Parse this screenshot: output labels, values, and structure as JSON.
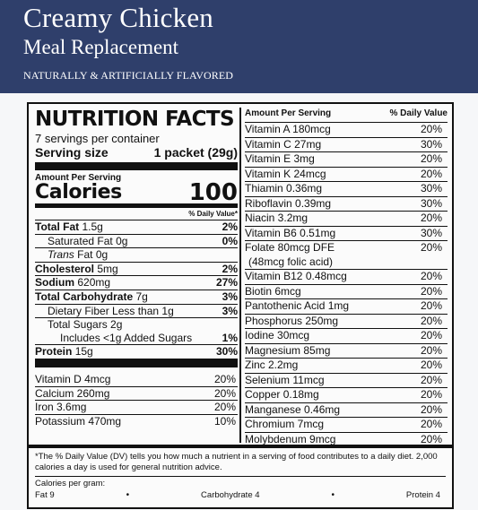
{
  "banner": {
    "title": "Creamy Chicken",
    "subtitle": "Meal Replacement",
    "flavor": "NATURALLY & ARTIFICIALLY FLAVORED",
    "color": "#2f3f6b"
  },
  "facts": {
    "title": "NUTRITION FACTS",
    "servings": "7 servings per container",
    "serving_size_label": "Serving size",
    "serving_size_value": "1 packet (29g)",
    "amount_per_serving": "Amount Per Serving",
    "calories_label": "Calories",
    "calories_value": "100",
    "dv_header": "% Daily Value*",
    "nutrients": [
      {
        "label": "Total Fat",
        "amount": "1.5g",
        "pct": "2%"
      },
      {
        "label": "Saturated Fat",
        "amount": "0g",
        "pct": "0%"
      },
      {
        "label": "Trans",
        "amount": "Fat 0g",
        "pct": ""
      },
      {
        "label": "Cholesterol",
        "amount": "5mg",
        "pct": "2%"
      },
      {
        "label": "Sodium",
        "amount": "620mg",
        "pct": "27%"
      },
      {
        "label": "Total Carbohydrate",
        "amount": "7g",
        "pct": "3%"
      },
      {
        "label": "Dietary Fiber Less than",
        "amount": "1g",
        "pct": "3%"
      },
      {
        "label": "Total Sugars",
        "amount": "2g",
        "pct": ""
      },
      {
        "label": "Includes <1g Added Sugars",
        "amount": "",
        "pct": "1%"
      },
      {
        "label": "Protein",
        "amount": "15g",
        "pct": "30%"
      }
    ],
    "vitamins_left": [
      {
        "label": "Vitamin D 4mcg",
        "pct": "20%"
      },
      {
        "label": "Calcium 260mg",
        "pct": "20%"
      },
      {
        "label": "Iron 3.6mg",
        "pct": "20%"
      },
      {
        "label": "Potassium 470mg",
        "pct": "10%"
      }
    ]
  },
  "right": {
    "header_left": "Amount Per Serving",
    "header_right": "% Daily Value",
    "rows": [
      {
        "label": "Vitamin A  180mcg",
        "pct": "20%"
      },
      {
        "label": "Vitamin C  27mg",
        "pct": "30%"
      },
      {
        "label": "Vitamin E  3mg",
        "pct": "20%"
      },
      {
        "label": "Vitamin K  24mcg",
        "pct": "20%"
      },
      {
        "label": "Thiamin  0.36mg",
        "pct": "30%"
      },
      {
        "label": "Riboflavin  0.39mg",
        "pct": "30%"
      },
      {
        "label": "Niacin  3.2mg",
        "pct": "20%"
      },
      {
        "label": "Vitamin B6  0.51mg",
        "pct": "30%"
      },
      {
        "label": "Folate  80mcg DFE",
        "label2": "(48mcg folic acid)",
        "pct": "20%"
      },
      {
        "label": "Vitamin B12  0.48mcg",
        "pct": "20%"
      },
      {
        "label": "Biotin  6mcg",
        "pct": "20%"
      },
      {
        "label": "Pantothenic Acid  1mg",
        "pct": "20%"
      },
      {
        "label": "Phosphorus  250mg",
        "pct": "20%"
      },
      {
        "label": "Iodine  30mcg",
        "pct": "20%"
      },
      {
        "label": "Magnesium  85mg",
        "pct": "20%"
      },
      {
        "label": "Zinc  2.2mg",
        "pct": "20%"
      },
      {
        "label": "Selenium  11mcg",
        "pct": "20%"
      },
      {
        "label": "Copper  0.18mg",
        "pct": "20%"
      },
      {
        "label": "Manganese  0.46mg",
        "pct": "20%"
      },
      {
        "label": "Chromium  7mcg",
        "pct": "20%"
      },
      {
        "label": "Molybdenum  9mcg",
        "pct": "20%"
      }
    ]
  },
  "footer": {
    "note": "*The % Daily Value (DV) tells you how much a nutrient in a serving of food contributes to a daily diet. 2,000 calories a day is used for general nutrition advice.",
    "cpg_label": "Calories per gram:",
    "fat": "Fat 9",
    "carb": "Carbohydrate 4",
    "protein": "Protein 4",
    "dot": "•"
  }
}
